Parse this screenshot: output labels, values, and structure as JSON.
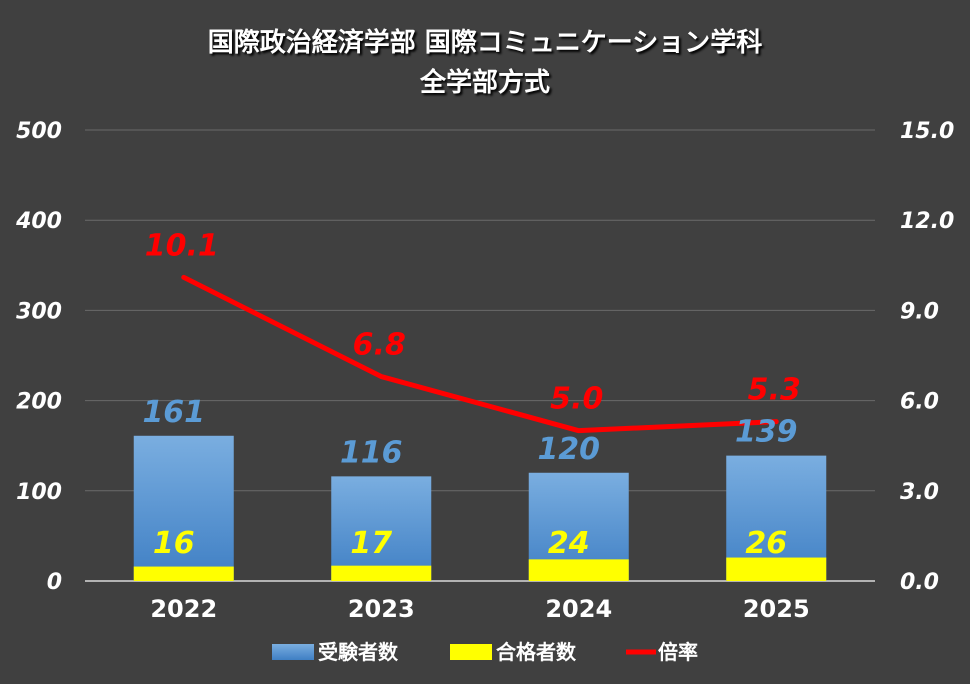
{
  "chart_data": {
    "type": "bar",
    "title_line1": "国際政治経済学部 国際コミュニケーション学科",
    "title_line2": "全学部方式",
    "categories": [
      "2022",
      "2023",
      "2024",
      "2025"
    ],
    "series": [
      {
        "name": "受験者数",
        "type": "bar",
        "axis": "left",
        "color": "#5b9bd5",
        "values": [
          161,
          116,
          120,
          139
        ]
      },
      {
        "name": "合格者数",
        "type": "bar",
        "axis": "left",
        "color": "#ffff00",
        "values": [
          16,
          17,
          24,
          26
        ]
      },
      {
        "name": "倍率",
        "type": "line",
        "axis": "right",
        "color": "#ff0000",
        "values": [
          10.1,
          6.8,
          5.0,
          5.3
        ]
      }
    ],
    "y_left": {
      "min": 0,
      "max": 500,
      "ticks": [
        "0",
        "100",
        "200",
        "300",
        "400",
        "500"
      ]
    },
    "y_right": {
      "min": 0,
      "max": 15,
      "ticks": [
        "0.0",
        "3.0",
        "6.0",
        "9.0",
        "12.0",
        "15.0"
      ]
    },
    "ratio_labels": [
      "10.1",
      "6.8",
      "5.0",
      "5.3"
    ],
    "grid": true,
    "legend_position": "bottom"
  }
}
